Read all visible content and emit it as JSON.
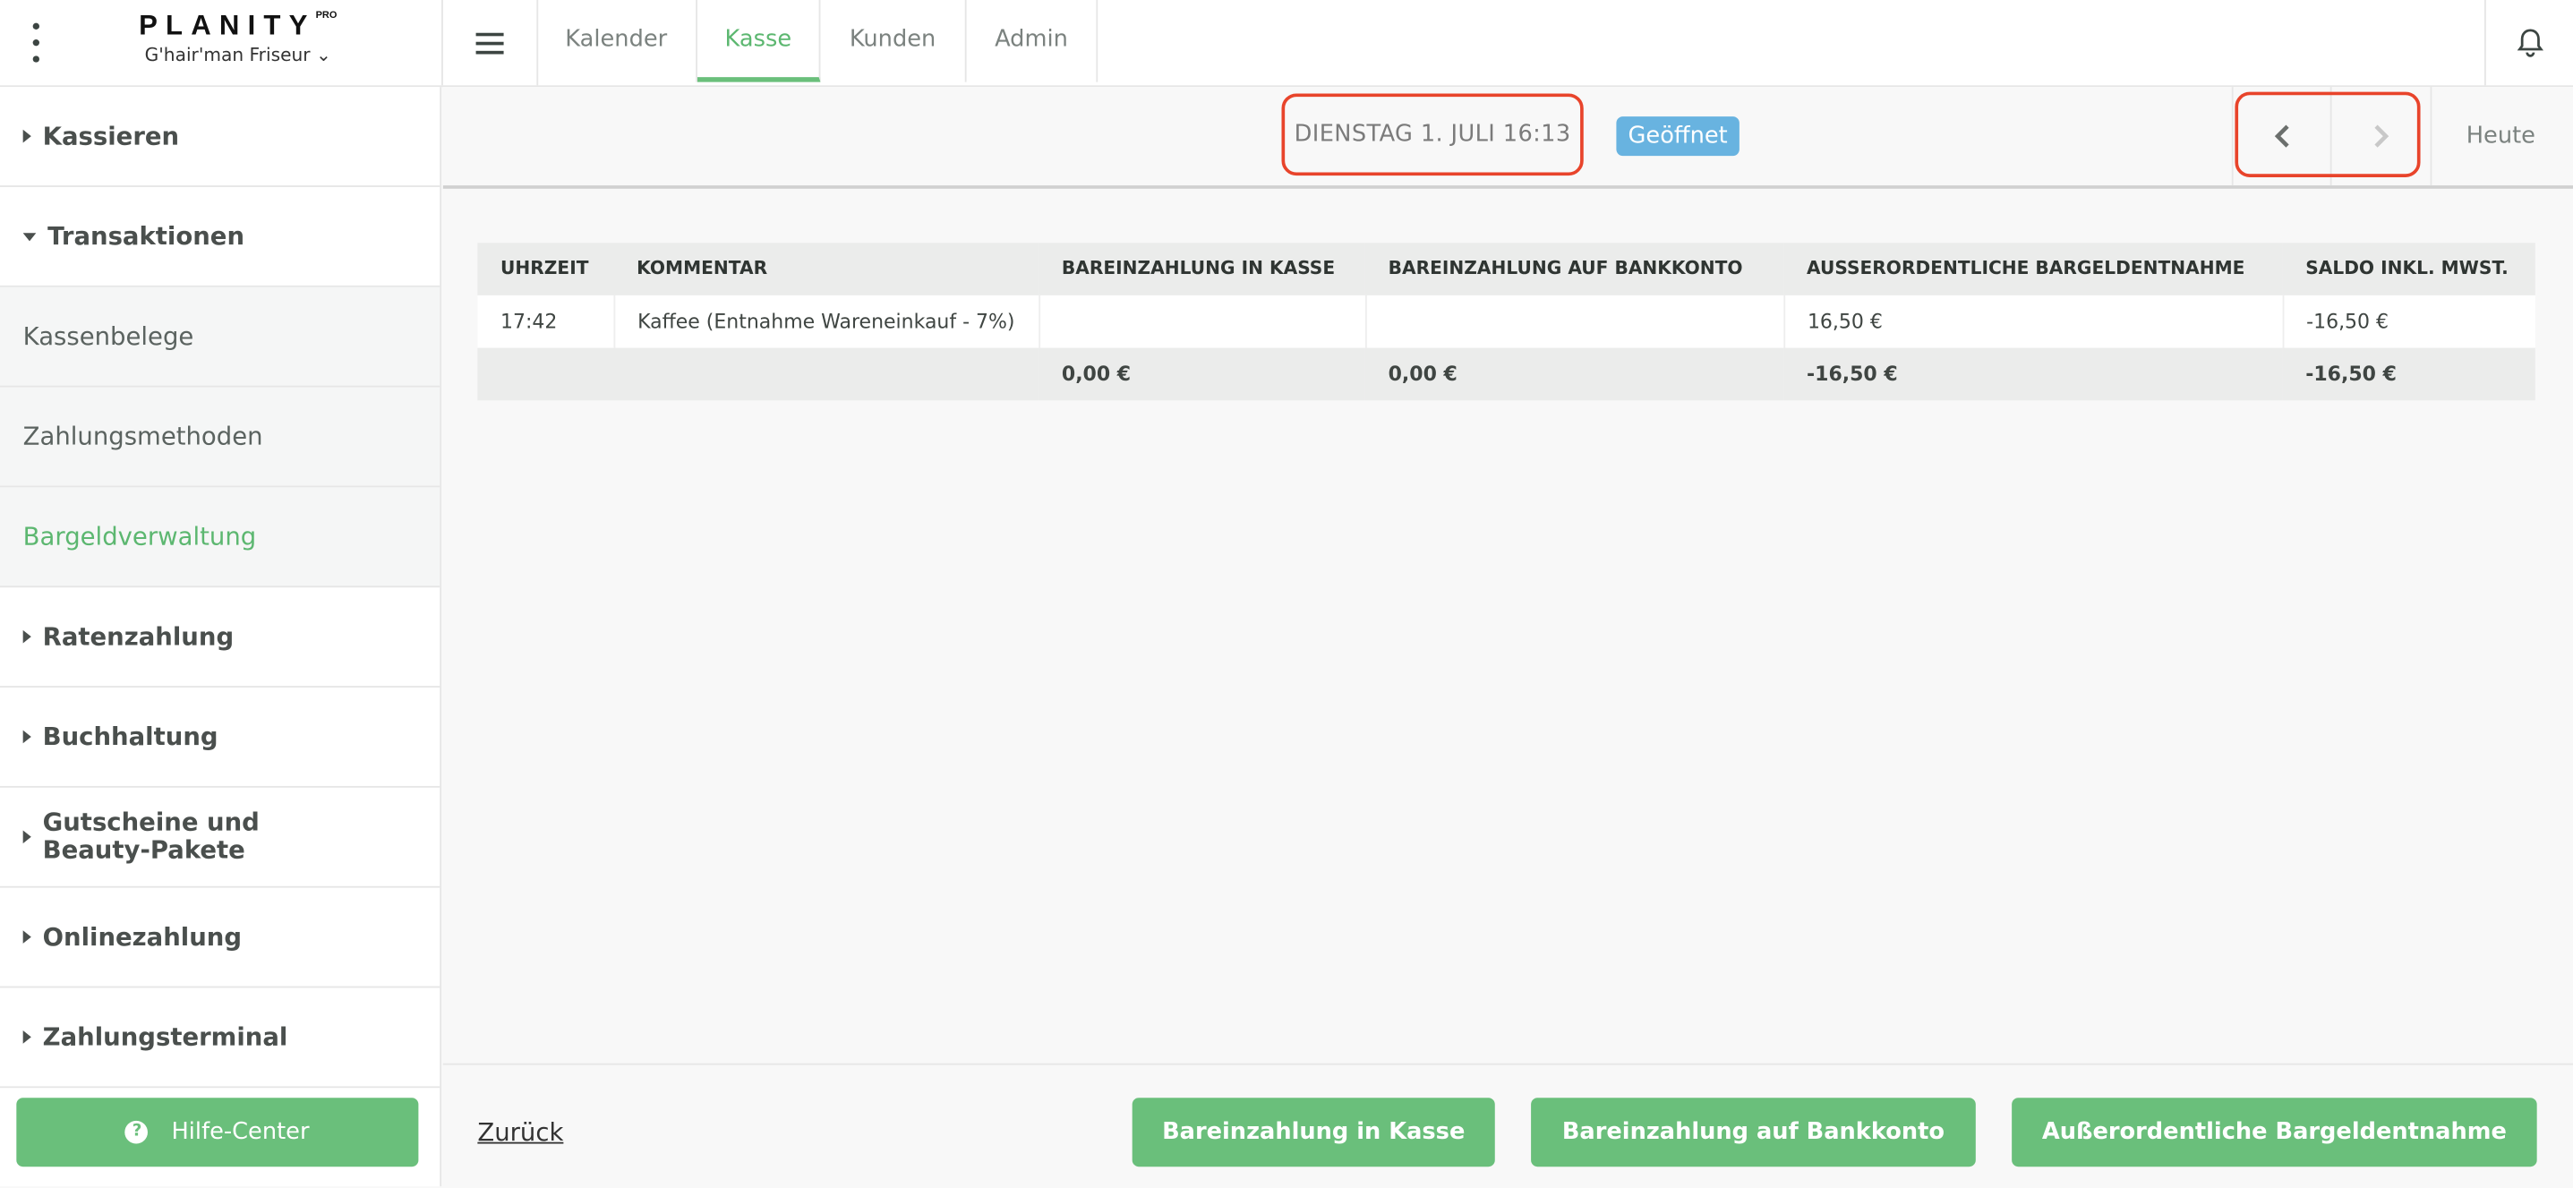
{
  "header": {
    "brand": "PLANITY",
    "brand_suffix": "PRO",
    "salon": "G'hair'man Friseur",
    "tabs": [
      {
        "label": "Kalender"
      },
      {
        "label": "Kasse",
        "active": true
      },
      {
        "label": "Kunden"
      },
      {
        "label": "Admin"
      }
    ]
  },
  "sidebar": {
    "items": [
      {
        "label": "Kassieren"
      },
      {
        "label": "Transaktionen"
      },
      {
        "label": "Kassenbelege"
      },
      {
        "label": "Zahlungsmethoden"
      },
      {
        "label": "Bargeldverwaltung",
        "selected": true
      },
      {
        "label": "Ratenzahlung"
      },
      {
        "label": "Buchhaltung"
      },
      {
        "label": "Gutscheine und Beauty-Pakete"
      },
      {
        "label": "Onlinezahlung"
      },
      {
        "label": "Zahlungsterminal"
      }
    ],
    "help": "Hilfe-Center"
  },
  "subheader": {
    "date": "DIENSTAG 1. JULI 16:13",
    "status": "Geöffnet",
    "today": "Heute"
  },
  "table": {
    "headers": [
      "UHRZEIT",
      "KOMMENTAR",
      "BAREINZAHLUNG IN KASSE",
      "BAREINZAHLUNG AUF BANKKONTO",
      "AUSSERORDENTLICHE BARGELDENTNAHME",
      "SALDO INKL. MWST."
    ],
    "rows": [
      [
        "17:42",
        "Kaffee (Entnahme Wareneinkauf - 7%)",
        "",
        "",
        "16,50 €",
        "-16,50 €"
      ]
    ],
    "totals": [
      "",
      "",
      "0,00 €",
      "0,00 €",
      "-16,50 €",
      "-16,50 €"
    ]
  },
  "footer": {
    "back": "Zurück",
    "buttons": [
      "Bareinzahlung in Kasse",
      "Bareinzahlung auf Bankkonto",
      "Außerordentliche Bargeldentnahme"
    ]
  },
  "colors": {
    "accent": "#6abf7b",
    "status": "#68b3e0",
    "highlight": "#e8442b"
  }
}
